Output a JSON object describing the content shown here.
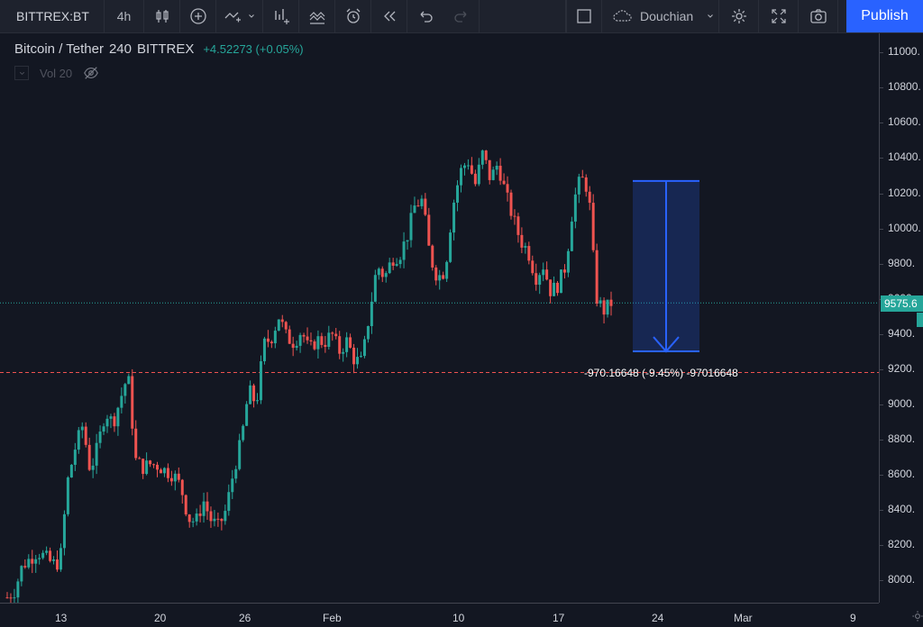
{
  "toolbar": {
    "symbol": "BITTREX:BT",
    "interval": "4h",
    "indicator_name": "Douchian",
    "publish_label": "Publish",
    "icons": [
      "candles-icon",
      "add-icon",
      "compare-icon",
      "chevron-down-icon",
      "indicators-icon",
      "templates-icon",
      "alert-icon",
      "replay-icon",
      "undo-icon",
      "redo-icon",
      "layout-icon",
      "cloud-icon",
      "settings-icon",
      "fullscreen-icon",
      "snapshot-icon"
    ]
  },
  "legend": {
    "pair": "Bitcoin / Tether",
    "interval": "240",
    "exchange": "BITTREX",
    "change": "+4.52273 (+0.05%)",
    "volume": "Vol 20"
  },
  "measure": {
    "label": "-970.16648 (-9.45%) -97016648"
  },
  "price_badge": "9575.6",
  "colors": {
    "up": "#26a69a",
    "down": "#ef5350",
    "background": "#131722",
    "accent": "#2962ff"
  },
  "chart_data": {
    "type": "candlestick",
    "price_ticks": [
      "11000.",
      "10800.",
      "10600.",
      "10400.",
      "10200.",
      "10000.",
      "9800.",
      "9600.",
      "9400.",
      "9200.",
      "9000.",
      "8800.",
      "8600.",
      "8400.",
      "8200.",
      "8000."
    ],
    "time_ticks": [
      "13",
      "20",
      "26",
      "Feb",
      "10",
      "17",
      "24",
      "Mar",
      "9"
    ],
    "ylim": [
      7870,
      11110
    ],
    "current_price": 9575.6,
    "reference_price": 9180,
    "measure": {
      "from": 10270,
      "to": 9300
    },
    "close_path": [
      7900,
      7940,
      8080,
      8120,
      8160,
      8130,
      8090,
      8100,
      8560,
      8750,
      8880,
      8620,
      8760,
      8960,
      8890,
      9030,
      9170,
      8680,
      8640,
      8660,
      8650,
      8620,
      8600,
      8530,
      8350,
      8330,
      8450,
      8340,
      8300,
      8400,
      8620,
      8790,
      9080,
      9000,
      9340,
      9380,
      9500,
      9380,
      9350,
      9420,
      9300,
      9370,
      9350,
      9400,
      9300,
      9360,
      9250,
      9240,
      9520,
      9790,
      9720,
      9830,
      9850,
      9960,
      10130,
      10160,
      9840,
      9720,
      9760,
      10120,
      10320,
      10390,
      10250,
      10430,
      10280,
      10370,
      10200,
      10060,
      9930,
      9870,
      9720,
      9790,
      9640,
      9680,
      9790,
      10150,
      10290,
      10220,
      9610,
      9530,
      9575
    ]
  }
}
